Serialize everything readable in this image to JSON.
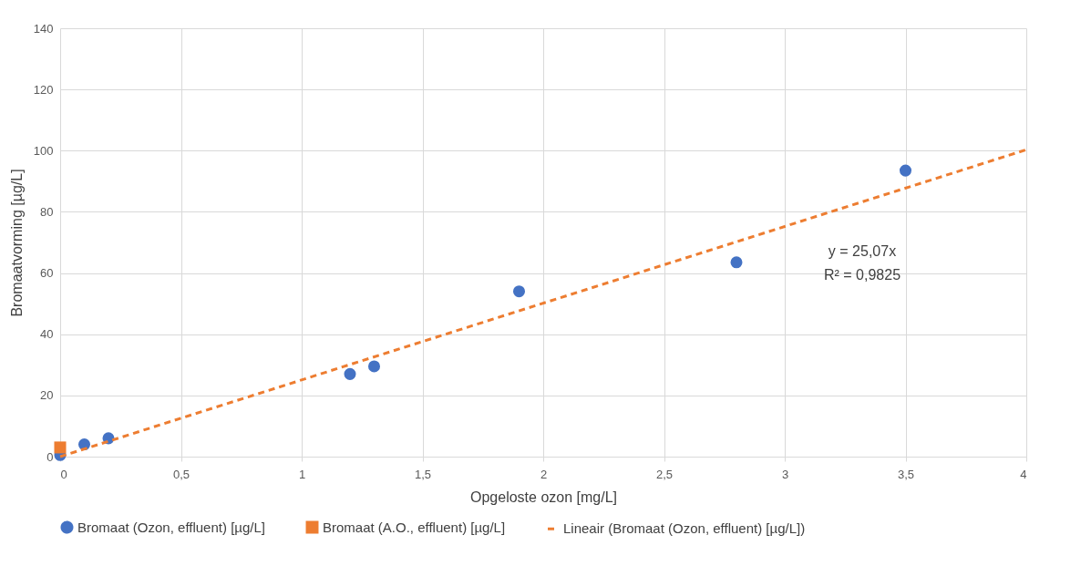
{
  "chart_data": {
    "type": "scatter",
    "xlabel": "Opgeloste ozon [mg/L]",
    "ylabel": "Bromaatvorming [µg/L]",
    "xlim": [
      0,
      4
    ],
    "ylim": [
      0,
      140
    ],
    "xticks": [
      0,
      {
        "value": 0.5,
        "label": "0,5"
      },
      1,
      {
        "value": 1.5,
        "label": "1,5"
      },
      2,
      {
        "value": 2.5,
        "label": "2,5"
      },
      3,
      {
        "value": 3.5,
        "label": "3,5"
      },
      4
    ],
    "yticks": [
      0,
      20,
      40,
      60,
      80,
      100,
      120,
      140
    ],
    "grid": true,
    "legend": "bottom",
    "series": [
      {
        "name": "Bromaat (Ozon, effluent) [µg/L]",
        "marker": "circle",
        "color": "#4472c4",
        "x": [
          0,
          0.1,
          0.2,
          1.2,
          1.3,
          1.9,
          2.8,
          3.5
        ],
        "values": [
          0.5,
          4,
          6,
          27,
          29.5,
          54,
          63.5,
          93.5
        ]
      },
      {
        "name": "Bromaat (A.O., effluent) [µg/L]",
        "marker": "square",
        "color": "#ed7d31",
        "x": [
          0
        ],
        "values": [
          3
        ]
      },
      {
        "name": "Lineair (Bromaat (Ozon, effluent) [µg/L])",
        "type": "line",
        "marker": "none",
        "line_style": "dashed",
        "color": "#ed7d31",
        "x": [
          0,
          4
        ],
        "values": [
          0,
          100.3
        ]
      }
    ],
    "annotations": [
      "y = 25,07x",
      "R² = 0,9825"
    ]
  }
}
